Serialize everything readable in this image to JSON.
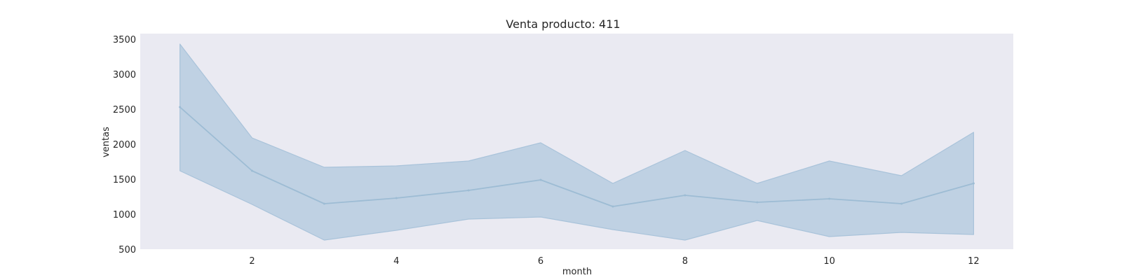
{
  "chart_data": {
    "type": "line",
    "title": "Venta producto: 411",
    "xlabel": "month",
    "ylabel": "ventas",
    "xlim": [
      0.45,
      12.55
    ],
    "ylim": [
      500,
      3580
    ],
    "xticks": [
      2,
      4,
      6,
      8,
      10,
      12
    ],
    "yticks": [
      500,
      1000,
      1500,
      2000,
      2500,
      3000,
      3500
    ],
    "grid": false,
    "colors": {
      "plot_background": "#eaeaf2",
      "line": "#9dbcd4",
      "band_fill": "#b0c8dd",
      "band_edge": "#a9c3da"
    },
    "series": [
      {
        "x": [
          1,
          2,
          3,
          4,
          5,
          6,
          7,
          8,
          9,
          10,
          11,
          12
        ],
        "mean": [
          2530,
          1620,
          1150,
          1230,
          1340,
          1490,
          1110,
          1270,
          1170,
          1220,
          1150,
          1440
        ],
        "lower": [
          1620,
          1140,
          630,
          770,
          930,
          960,
          780,
          630,
          910,
          680,
          740,
          710
        ],
        "upper": [
          3430,
          2090,
          1670,
          1690,
          1760,
          2020,
          1440,
          1910,
          1440,
          1760,
          1550,
          2170
        ]
      }
    ]
  }
}
